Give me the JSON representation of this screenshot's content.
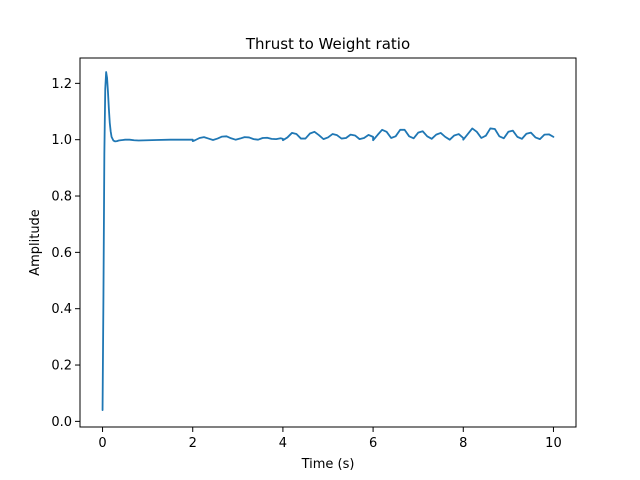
{
  "chart_data": {
    "type": "line",
    "title": "Thrust to Weight ratio",
    "xlabel": "Time (s)",
    "ylabel": "Amplitude",
    "xlim": [
      -0.5,
      10.5
    ],
    "ylim": [
      -0.02,
      1.29
    ],
    "xticks": [
      0,
      2,
      4,
      6,
      8,
      10
    ],
    "yticks": [
      0.0,
      0.2,
      0.4,
      0.6,
      0.8,
      1.0,
      1.2
    ],
    "xtick_labels": [
      "0",
      "2",
      "4",
      "6",
      "8",
      "10"
    ],
    "ytick_labels": [
      "0.0",
      "0.2",
      "0.4",
      "0.6",
      "0.8",
      "1.0",
      "1.2"
    ],
    "grid": false,
    "legend": "none",
    "series": [
      {
        "color": "#1f77b4",
        "x": [
          0.0,
          0.02,
          0.04,
          0.06,
          0.08,
          0.1,
          0.12,
          0.14,
          0.16,
          0.18,
          0.2,
          0.24,
          0.28,
          0.32,
          0.36,
          0.4,
          0.45,
          0.5,
          0.6,
          0.7,
          0.8,
          1.0,
          1.2,
          1.5,
          1.8,
          2.0,
          2.0,
          2.05,
          2.15,
          2.25,
          2.35,
          2.45,
          2.55,
          2.65,
          2.75,
          2.85,
          2.95,
          3.05,
          3.15,
          3.25,
          3.35,
          3.45,
          3.55,
          3.65,
          3.75,
          3.85,
          3.95,
          4.0,
          4.0,
          4.1,
          4.2,
          4.3,
          4.4,
          4.5,
          4.6,
          4.7,
          4.8,
          4.9,
          5.0,
          5.1,
          5.2,
          5.3,
          5.4,
          5.5,
          5.6,
          5.7,
          5.8,
          5.9,
          6.0,
          6.0,
          6.1,
          6.2,
          6.3,
          6.4,
          6.5,
          6.6,
          6.7,
          6.8,
          6.9,
          7.0,
          7.1,
          7.2,
          7.3,
          7.4,
          7.5,
          7.6,
          7.7,
          7.8,
          7.9,
          8.0,
          8.0,
          8.1,
          8.2,
          8.3,
          8.4,
          8.5,
          8.6,
          8.7,
          8.8,
          8.9,
          9.0,
          9.1,
          9.2,
          9.3,
          9.4,
          9.5,
          9.6,
          9.7,
          9.8,
          9.9,
          10.0
        ],
        "y": [
          0.04,
          0.45,
          0.95,
          1.18,
          1.24,
          1.22,
          1.17,
          1.11,
          1.06,
          1.03,
          1.01,
          0.997,
          0.994,
          0.995,
          0.997,
          0.998,
          0.999,
          1.0,
          1.0,
          0.998,
          0.997,
          0.998,
          0.999,
          1.0,
          1.0,
          1.0,
          0.995,
          0.998,
          1.006,
          1.009,
          1.004,
          0.999,
          1.004,
          1.011,
          1.012,
          1.005,
          1.0,
          1.004,
          1.009,
          1.008,
          1.002,
          1.0,
          1.006,
          1.007,
          1.003,
          1.002,
          1.005,
          1.003,
          0.998,
          1.008,
          1.024,
          1.02,
          1.004,
          1.004,
          1.022,
          1.028,
          1.016,
          1.002,
          1.008,
          1.02,
          1.016,
          1.004,
          1.006,
          1.018,
          1.015,
          1.002,
          1.006,
          1.017,
          1.01,
          0.998,
          1.017,
          1.035,
          1.028,
          1.006,
          1.012,
          1.035,
          1.035,
          1.012,
          1.005,
          1.025,
          1.03,
          1.012,
          1.003,
          1.018,
          1.024,
          1.01,
          1.0,
          1.015,
          1.02,
          1.006,
          1.0,
          1.02,
          1.04,
          1.028,
          1.006,
          1.014,
          1.04,
          1.038,
          1.012,
          1.005,
          1.028,
          1.032,
          1.01,
          1.003,
          1.021,
          1.025,
          1.008,
          1.002,
          1.018,
          1.019,
          1.01
        ]
      }
    ]
  }
}
